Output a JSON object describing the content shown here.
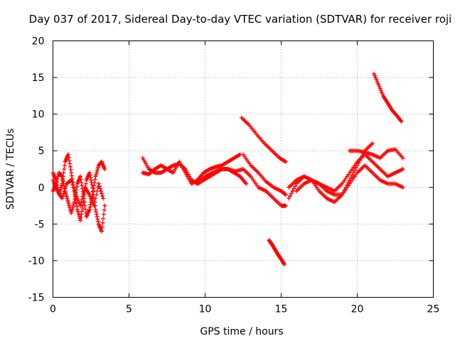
{
  "chart_data": {
    "type": "scatter",
    "title": "Day 037 of 2017, Sidereal Day-to-day VTEC variation (SDTVAR) for receiver roji",
    "xlabel": "GPS time / hours",
    "ylabel": "SDTVAR / TECUs",
    "xlim": [
      0,
      25
    ],
    "ylim": [
      -15,
      20
    ],
    "xticks": [
      0,
      5,
      10,
      15,
      20,
      25
    ],
    "yticks": [
      -15,
      -10,
      -5,
      0,
      5,
      10,
      15,
      20
    ],
    "xtick_labels": [
      "0",
      "5",
      "10",
      "15",
      "20",
      "25"
    ],
    "ytick_labels": [
      "-15",
      "-10",
      "-5",
      "0",
      "5",
      "10",
      "15",
      "20"
    ],
    "grid": true,
    "marker": "+",
    "color": "#ff0000",
    "series": [
      {
        "name": "s1",
        "x": [
          0.0,
          0.2,
          0.4,
          0.6,
          0.8,
          1.0,
          1.2,
          1.4,
          1.6,
          1.8,
          2.0,
          2.2,
          2.4,
          2.6,
          2.8,
          3.0,
          3.2,
          3.4
        ],
        "y": [
          2.0,
          1.0,
          -1.0,
          0.5,
          3.5,
          4.5,
          2.0,
          -0.5,
          -3.0,
          -4.5,
          -2.0,
          1.0,
          2.0,
          0.0,
          -3.0,
          -5.0,
          -6.0,
          -2.5
        ]
      },
      {
        "name": "s2",
        "x": [
          0.0,
          0.2,
          0.4,
          0.6,
          0.8,
          1.0,
          1.2,
          1.4,
          1.6,
          1.8,
          2.0,
          2.2,
          2.4,
          2.6,
          2.8,
          3.0,
          3.2,
          3.4
        ],
        "y": [
          -0.5,
          0.5,
          2.0,
          1.5,
          -0.5,
          -2.0,
          -3.5,
          -2.0,
          0.5,
          1.5,
          -1.0,
          -4.0,
          -3.0,
          -1.0,
          1.5,
          3.0,
          3.5,
          2.5
        ]
      },
      {
        "name": "s3",
        "x": [
          0.0,
          0.3,
          0.6,
          0.9,
          1.2,
          1.5,
          1.8,
          2.1,
          2.4,
          2.7,
          3.0,
          3.3
        ],
        "y": [
          1.0,
          -0.5,
          -1.5,
          0.5,
          1.0,
          -1.0,
          -2.5,
          0.0,
          -1.0,
          -2.5,
          0.5,
          -1.5
        ]
      },
      {
        "name": "s4",
        "x": [
          5.9,
          6.3,
          6.7,
          7.1,
          7.5,
          7.9,
          8.3,
          8.7,
          9.1,
          9.5,
          9.9,
          10.3,
          10.7,
          11.1,
          11.5,
          11.9,
          12.3,
          12.7
        ],
        "y": [
          4.0,
          2.5,
          2.0,
          2.0,
          2.5,
          3.0,
          3.2,
          2.5,
          1.0,
          0.5,
          1.0,
          1.5,
          2.0,
          2.5,
          2.5,
          2.0,
          1.5,
          0.5
        ]
      },
      {
        "name": "s5",
        "x": [
          5.9,
          6.3,
          6.7,
          7.1,
          7.5,
          7.9,
          8.3,
          8.7,
          9.1,
          9.5,
          9.9,
          10.3,
          10.7,
          11.1,
          11.5,
          11.9,
          12.3
        ],
        "y": [
          2.0,
          1.8,
          2.5,
          3.0,
          2.5,
          2.0,
          3.5,
          2.0,
          0.5,
          1.0,
          2.0,
          2.5,
          2.8,
          3.0,
          3.5,
          4.0,
          4.5
        ]
      },
      {
        "name": "s6",
        "x": [
          9.5,
          10.0,
          10.5,
          11.0,
          11.5,
          12.0,
          12.5,
          13.0,
          13.5,
          14.0,
          14.5,
          15.0,
          15.3
        ],
        "y": [
          0.5,
          1.5,
          2.0,
          2.5,
          2.5,
          2.2,
          2.5,
          1.5,
          0.0,
          -0.5,
          -1.5,
          -2.5,
          -2.5
        ]
      },
      {
        "name": "s7",
        "x": [
          12.5,
          13.0,
          13.5,
          14.0,
          14.5,
          15.0,
          15.3
        ],
        "y": [
          4.5,
          3.0,
          2.0,
          0.8,
          0.0,
          -0.5,
          -1.0
        ]
      },
      {
        "name": "s8",
        "x": [
          12.4,
          12.9,
          13.4,
          13.9,
          14.4,
          14.9,
          15.3
        ],
        "y": [
          9.5,
          8.5,
          7.2,
          6.0,
          5.0,
          4.0,
          3.5
        ]
      },
      {
        "name": "s9",
        "x": [
          14.2,
          14.4,
          14.6,
          14.8,
          15.0,
          15.2
        ],
        "y": [
          -7.2,
          -7.8,
          -8.5,
          -9.2,
          -9.8,
          -10.5
        ]
      },
      {
        "name": "s10",
        "x": [
          15.5,
          16.0,
          16.5,
          17.0,
          17.5,
          18.0,
          18.5,
          19.0,
          19.5,
          20.0,
          20.5,
          21.0
        ],
        "y": [
          -1.5,
          0.5,
          1.5,
          1.0,
          -0.5,
          -1.5,
          -2.0,
          -1.0,
          1.0,
          3.0,
          5.0,
          6.0
        ]
      },
      {
        "name": "s11",
        "x": [
          15.5,
          16.0,
          16.5,
          17.0,
          17.5,
          18.0,
          18.5,
          19.0,
          19.5,
          20.0,
          20.5,
          21.0,
          21.5,
          22.0,
          22.5,
          23.0
        ],
        "y": [
          0.0,
          1.0,
          1.5,
          1.0,
          0.5,
          0.0,
          -0.5,
          0.5,
          2.0,
          3.5,
          4.5,
          3.5,
          2.5,
          1.5,
          2.0,
          2.5
        ]
      },
      {
        "name": "s12",
        "x": [
          16.0,
          16.5,
          17.0,
          17.5,
          18.0,
          18.5,
          19.0,
          19.5,
          20.0,
          20.5,
          21.0,
          21.5,
          22.0,
          22.5,
          23.0
        ],
        "y": [
          -0.5,
          0.5,
          1.0,
          0.5,
          -0.5,
          -1.0,
          -1.0,
          0.5,
          2.0,
          3.0,
          2.0,
          1.0,
          0.5,
          0.5,
          0.0
        ]
      },
      {
        "name": "s13",
        "x": [
          19.5,
          20.0,
          20.5,
          21.0,
          21.5,
          22.0,
          22.5,
          23.0
        ],
        "y": [
          5.0,
          5.0,
          4.8,
          4.5,
          4.0,
          5.0,
          5.2,
          4.0
        ]
      },
      {
        "name": "s14",
        "x": [
          21.1,
          21.4,
          21.7,
          22.0,
          22.3,
          22.6,
          22.9
        ],
        "y": [
          15.5,
          14.0,
          12.5,
          11.5,
          10.5,
          9.8,
          9.0
        ]
      }
    ]
  }
}
